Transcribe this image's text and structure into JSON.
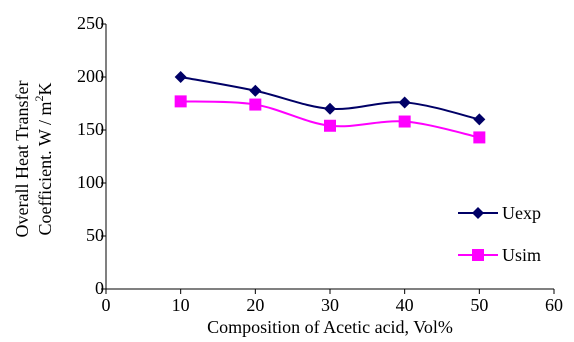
{
  "chart_data": {
    "type": "line",
    "title": "",
    "xlabel": "Composition of Acetic acid, Vol%",
    "ylabel_lines": [
      "Overall Heat Transfer",
      "Coefficient. W / m",
      "2",
      "K"
    ],
    "xlim": [
      0,
      60
    ],
    "ylim": [
      0,
      250
    ],
    "xticks": [
      0,
      10,
      20,
      30,
      40,
      50,
      60
    ],
    "yticks": [
      0,
      50,
      100,
      150,
      200,
      250
    ],
    "grid": false,
    "smooth": true,
    "legend_position": "right",
    "series": [
      {
        "name": "Uexp",
        "color": "#000066",
        "marker": "diamond",
        "x": [
          10,
          20,
          30,
          40,
          50
        ],
        "y": [
          200,
          187,
          170,
          176,
          160
        ]
      },
      {
        "name": "Usim",
        "color": "#ff00ff",
        "marker": "square",
        "x": [
          10,
          20,
          30,
          40,
          50
        ],
        "y": [
          177,
          174,
          154,
          158,
          143
        ]
      }
    ]
  }
}
